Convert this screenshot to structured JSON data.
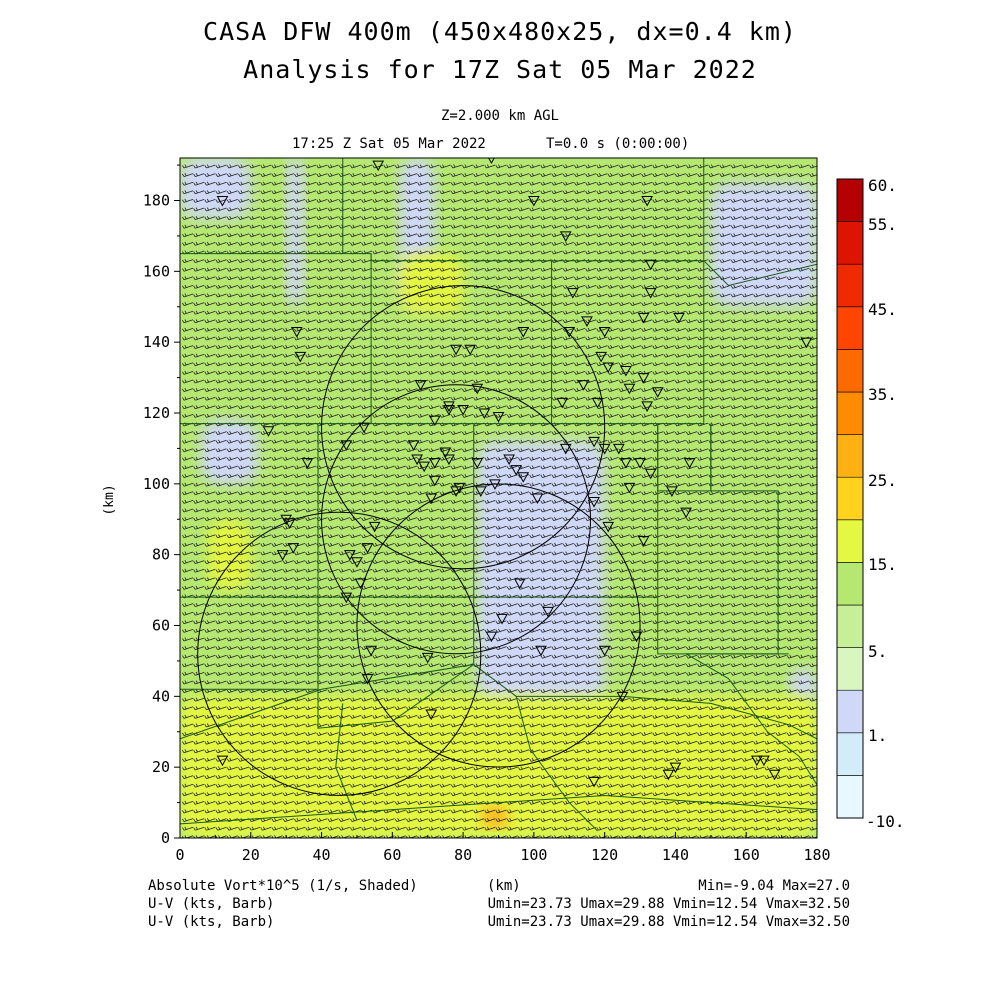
{
  "title_line1": "CASA DFW 400m (450x480x25, dx=0.4 km)",
  "title_line2": "Analysis for 17Z Sat 05 Mar 2022",
  "level_label": "Z=2.000 km AGL",
  "time_label": "17:25 Z Sat 05 Mar 2022",
  "elapsed_label": "T=0.0 s (0:00:00)",
  "field1_label": "Absolute Vort*10^5 (1/s, Shaded)",
  "field2_label": "U-V (kts, Barb)",
  "field3_label": "U-V (kts, Barb)",
  "xunit_label": "(km)",
  "stats_field1": "Min=-9.04 Max=27.0",
  "stats_field2": "Umin=23.73 Umax=29.88 Vmin=12.54 Vmax=32.50",
  "stats_field3": "Umin=23.73 Umax=29.88 Vmin=12.54 Vmax=32.50",
  "colors": {
    "background": "#ffffff",
    "county_lines": "#1a5a1a",
    "barb": "#222222",
    "vort_field_dominant": "#b5e871"
  },
  "chart_data": {
    "type": "heatmap",
    "title": "CASA DFW 400m (450x480x25, dx=0.4 km)",
    "subtitle": "Analysis for 17Z Sat 05 Mar 2022",
    "xlabel": "",
    "ylabel": "(km)",
    "xlim": [
      0,
      180
    ],
    "ylim": [
      0,
      192
    ],
    "xticks": [
      0,
      20,
      40,
      60,
      80,
      100,
      120,
      140,
      160,
      180
    ],
    "yticks": [
      0,
      20,
      40,
      60,
      80,
      100,
      120,
      140,
      160,
      180
    ],
    "grid": false,
    "colorbar": {
      "labels": [
        "60.",
        "55.",
        "45.",
        "35.",
        "25.",
        "15.",
        "5.",
        "1.",
        "-10."
      ],
      "bands": [
        {
          "color": "#e8f8ff",
          "range": [
            -10,
            -1
          ]
        },
        {
          "color": "#d2ecfa",
          "range": [
            -1,
            1
          ]
        },
        {
          "color": "#cfd8f6",
          "range": [
            1,
            3
          ]
        },
        {
          "color": "#d9f5c0",
          "range": [
            3,
            5
          ]
        },
        {
          "color": "#c6ef97",
          "range": [
            5,
            10
          ]
        },
        {
          "color": "#b5e871",
          "range": [
            10,
            15
          ]
        },
        {
          "color": "#e4f741",
          "range": [
            15,
            20
          ]
        },
        {
          "color": "#ffd21e",
          "range": [
            20,
            25
          ]
        },
        {
          "color": "#ffb114",
          "range": [
            25,
            30
          ]
        },
        {
          "color": "#ff8c00",
          "range": [
            30,
            35
          ]
        },
        {
          "color": "#ff6a00",
          "range": [
            35,
            40
          ]
        },
        {
          "color": "#ff4500",
          "range": [
            40,
            45
          ]
        },
        {
          "color": "#f02a00",
          "range": [
            45,
            50
          ]
        },
        {
          "color": "#dc1400",
          "range": [
            50,
            55
          ]
        },
        {
          "color": "#b40000",
          "range": [
            55,
            60
          ]
        }
      ]
    },
    "shading_regions": [
      {
        "value": 10,
        "x": [
          0,
          180
        ],
        "y": [
          0,
          192
        ]
      },
      {
        "value": 2,
        "x": [
          0,
          20
        ],
        "y": [
          175,
          192
        ]
      },
      {
        "value": 2,
        "x": [
          30,
          35
        ],
        "y": [
          150,
          192
        ]
      },
      {
        "value": 2,
        "x": [
          6,
          22
        ],
        "y": [
          100,
          118
        ]
      },
      {
        "value": 2,
        "x": [
          62,
          72
        ],
        "y": [
          150,
          192
        ]
      },
      {
        "value": 2,
        "x": [
          84,
          120
        ],
        "y": [
          38,
          112
        ]
      },
      {
        "value": 2,
        "x": [
          150,
          180
        ],
        "y": [
          150,
          185
        ]
      },
      {
        "value": 2,
        "x": [
          172,
          180
        ],
        "y": [
          38,
          48
        ]
      },
      {
        "value": 16,
        "x": [
          62,
          80
        ],
        "y": [
          148,
          165
        ]
      },
      {
        "value": 16,
        "x": [
          8,
          20
        ],
        "y": [
          70,
          90
        ]
      },
      {
        "value": 16,
        "x": [
          0,
          180
        ],
        "y": [
          0,
          40
        ]
      },
      {
        "value": 27,
        "x": [
          85,
          93
        ],
        "y": [
          3,
          9
        ]
      }
    ],
    "wind_barbs": {
      "u_range": [
        23.73,
        29.88
      ],
      "v_range": [
        12.54,
        32.5
      ],
      "units": "kts"
    },
    "radar_range_rings": [
      {
        "center": [
          80,
          116
        ],
        "radius": 40
      },
      {
        "center": [
          78,
          90
        ],
        "radius": 38
      },
      {
        "center": [
          90,
          60
        ],
        "radius": 40
      },
      {
        "center": [
          45,
          52
        ],
        "radius": 40
      }
    ],
    "stations_km": [
      [
        12,
        180
      ],
      [
        56,
        190
      ],
      [
        88,
        192
      ],
      [
        100,
        180
      ],
      [
        109,
        170
      ],
      [
        132,
        180
      ],
      [
        133,
        162
      ],
      [
        111,
        154
      ],
      [
        133,
        154
      ],
      [
        131,
        147
      ],
      [
        141,
        147
      ],
      [
        110,
        143
      ],
      [
        115,
        146
      ],
      [
        120,
        143
      ],
      [
        97,
        143
      ],
      [
        119,
        136
      ],
      [
        121,
        133
      ],
      [
        126,
        132
      ],
      [
        131,
        130
      ],
      [
        127,
        127
      ],
      [
        135,
        126
      ],
      [
        114,
        128
      ],
      [
        108,
        123
      ],
      [
        118,
        123
      ],
      [
        132,
        122
      ],
      [
        82,
        138
      ],
      [
        78,
        138
      ],
      [
        84,
        127
      ],
      [
        68,
        128
      ],
      [
        33,
        143
      ],
      [
        34,
        136
      ],
      [
        76,
        122
      ],
      [
        80,
        121
      ],
      [
        86,
        120
      ],
      [
        90,
        119
      ],
      [
        76,
        121
      ],
      [
        72,
        118
      ],
      [
        52,
        116
      ],
      [
        75,
        109
      ],
      [
        66,
        111
      ],
      [
        67,
        107
      ],
      [
        69,
        105
      ],
      [
        72,
        106
      ],
      [
        76,
        107
      ],
      [
        84,
        106
      ],
      [
        93,
        107
      ],
      [
        109,
        110
      ],
      [
        117,
        112
      ],
      [
        120,
        110
      ],
      [
        124,
        110
      ],
      [
        126,
        106
      ],
      [
        130,
        106
      ],
      [
        133,
        103
      ],
      [
        95,
        104
      ],
      [
        97,
        102
      ],
      [
        89,
        100
      ],
      [
        85,
        98
      ],
      [
        79,
        99
      ],
      [
        78,
        98
      ],
      [
        72,
        101
      ],
      [
        71,
        96
      ],
      [
        101,
        96
      ],
      [
        117,
        95
      ],
      [
        127,
        99
      ],
      [
        121,
        88
      ],
      [
        131,
        84
      ],
      [
        144,
        106
      ],
      [
        139,
        98
      ],
      [
        143,
        92
      ],
      [
        36,
        106
      ],
      [
        47,
        111
      ],
      [
        25,
        115
      ],
      [
        30,
        90
      ],
      [
        31,
        89
      ],
      [
        29,
        80
      ],
      [
        32,
        82
      ],
      [
        55,
        88
      ],
      [
        53,
        82
      ],
      [
        48,
        80
      ],
      [
        50,
        78
      ],
      [
        51,
        72
      ],
      [
        47,
        68
      ],
      [
        96,
        72
      ],
      [
        104,
        64
      ],
      [
        91,
        62
      ],
      [
        54,
        53
      ],
      [
        70,
        51
      ],
      [
        102,
        53
      ],
      [
        120,
        53
      ],
      [
        129,
        57
      ],
      [
        88,
        57
      ],
      [
        125,
        40
      ],
      [
        71,
        35
      ],
      [
        53,
        45
      ],
      [
        163,
        22
      ],
      [
        165,
        22
      ],
      [
        168,
        18
      ],
      [
        140,
        20
      ],
      [
        138,
        18
      ],
      [
        117,
        16
      ],
      [
        12,
        22
      ],
      [
        177,
        140
      ]
    ]
  }
}
